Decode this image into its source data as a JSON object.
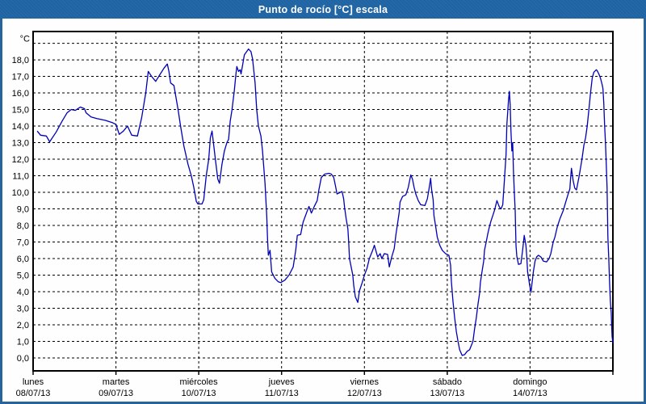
{
  "window": {
    "title": "Punto de rocío [°C] escala"
  },
  "colors": {
    "title_bar": "#2368a8",
    "window_border": "#25659b",
    "background": "#fdfefd",
    "plot_background": "#fefefe",
    "grid": "#000000",
    "series_line": "#0000b8",
    "text": "#000000",
    "title_text": "#ffffff"
  },
  "chart_data": {
    "type": "line",
    "title": "Punto de rocío [°C] escala",
    "legend": "none",
    "grid": true,
    "y_axis": {
      "unit": "°C",
      "ylim": [
        -0.78,
        19.71
      ],
      "grid_step": 1,
      "grid_max": 19,
      "tick_values": [
        0,
        1,
        2,
        3,
        4,
        5,
        6,
        7,
        8,
        9,
        10,
        11,
        12,
        13,
        14,
        15,
        16,
        17,
        18
      ],
      "tick_labels": [
        "0,0",
        "1,0",
        "2,0",
        "3,0",
        "4,0",
        "5,0",
        "6,0",
        "7,0",
        "8,0",
        "9,0",
        "10,0",
        "11,0",
        "12,0",
        "13,0",
        "14,0",
        "15,0",
        "16,0",
        "17,0",
        "18,0"
      ]
    },
    "x_axis": {
      "days": [
        {
          "name": "lunes",
          "date": "08/07/13"
        },
        {
          "name": "martes",
          "date": "09/07/13"
        },
        {
          "name": "miércoles",
          "date": "10/07/13"
        },
        {
          "name": "jueves",
          "date": "11/07/13"
        },
        {
          "name": "viernes",
          "date": "12/07/13"
        },
        {
          "name": "sábado",
          "date": "13/07/13"
        },
        {
          "name": "domingo",
          "date": "14/07/13"
        }
      ]
    },
    "series": [
      {
        "name": "Punto de rocío",
        "color": "#0000b8",
        "points": [
          [
            0.05,
            13.7
          ],
          [
            0.09,
            13.45
          ],
          [
            0.16,
            13.4
          ],
          [
            0.2,
            13.05
          ],
          [
            0.28,
            13.65
          ],
          [
            0.35,
            14.3
          ],
          [
            0.41,
            14.8
          ],
          [
            0.46,
            15.0
          ],
          [
            0.51,
            14.95
          ],
          [
            0.57,
            15.15
          ],
          [
            0.62,
            15.05
          ],
          [
            0.64,
            14.8
          ],
          [
            0.7,
            14.55
          ],
          [
            0.77,
            14.45
          ],
          [
            0.87,
            14.35
          ],
          [
            0.96,
            14.2
          ],
          [
            1.0,
            14.1
          ],
          [
            1.04,
            13.5
          ],
          [
            1.09,
            13.7
          ],
          [
            1.14,
            14.0
          ],
          [
            1.19,
            13.45
          ],
          [
            1.26,
            13.4
          ],
          [
            1.31,
            14.5
          ],
          [
            1.36,
            16.0
          ],
          [
            1.39,
            17.3
          ],
          [
            1.43,
            17.0
          ],
          [
            1.48,
            16.7
          ],
          [
            1.53,
            17.1
          ],
          [
            1.58,
            17.5
          ],
          [
            1.62,
            17.75
          ],
          [
            1.64,
            17.3
          ],
          [
            1.66,
            16.6
          ],
          [
            1.7,
            16.45
          ],
          [
            1.75,
            15.0
          ],
          [
            1.78,
            14.0
          ],
          [
            1.82,
            12.8
          ],
          [
            1.87,
            11.7
          ],
          [
            1.91,
            11.0
          ],
          [
            1.94,
            10.3
          ],
          [
            1.97,
            9.45
          ],
          [
            1.99,
            9.3
          ],
          [
            2.04,
            9.3
          ],
          [
            2.06,
            9.55
          ],
          [
            2.09,
            11.0
          ],
          [
            2.12,
            12.0
          ],
          [
            2.14,
            13.3
          ],
          [
            2.16,
            13.7
          ],
          [
            2.2,
            12.0
          ],
          [
            2.23,
            10.8
          ],
          [
            2.25,
            10.55
          ],
          [
            2.28,
            11.7
          ],
          [
            2.31,
            12.5
          ],
          [
            2.34,
            13.0
          ],
          [
            2.36,
            13.2
          ],
          [
            2.38,
            14.3
          ],
          [
            2.4,
            14.95
          ],
          [
            2.43,
            16.15
          ],
          [
            2.45,
            17.2
          ],
          [
            2.46,
            17.6
          ],
          [
            2.48,
            17.3
          ],
          [
            2.5,
            17.4
          ],
          [
            2.51,
            17.15
          ],
          [
            2.53,
            17.7
          ],
          [
            2.55,
            18.3
          ],
          [
            2.6,
            18.65
          ],
          [
            2.63,
            18.5
          ],
          [
            2.65,
            18.05
          ],
          [
            2.68,
            16.6
          ],
          [
            2.7,
            15.0
          ],
          [
            2.72,
            14.0
          ],
          [
            2.75,
            13.4
          ],
          [
            2.77,
            12.5
          ],
          [
            2.8,
            10.55
          ],
          [
            2.82,
            8.6
          ],
          [
            2.83,
            7.2
          ],
          [
            2.84,
            6.2
          ],
          [
            2.86,
            6.5
          ],
          [
            2.88,
            5.2
          ],
          [
            2.92,
            4.8
          ],
          [
            2.96,
            4.6
          ],
          [
            2.99,
            4.55
          ],
          [
            3.04,
            4.7
          ],
          [
            3.09,
            5.0
          ],
          [
            3.14,
            5.5
          ],
          [
            3.17,
            6.5
          ],
          [
            3.19,
            7.4
          ],
          [
            3.23,
            7.45
          ],
          [
            3.26,
            8.2
          ],
          [
            3.3,
            8.75
          ],
          [
            3.33,
            9.15
          ],
          [
            3.36,
            8.75
          ],
          [
            3.4,
            9.2
          ],
          [
            3.43,
            9.5
          ],
          [
            3.45,
            10.15
          ],
          [
            3.48,
            10.9
          ],
          [
            3.52,
            11.1
          ],
          [
            3.57,
            11.15
          ],
          [
            3.6,
            11.1
          ],
          [
            3.63,
            10.9
          ],
          [
            3.65,
            10.4
          ],
          [
            3.67,
            9.9
          ],
          [
            3.69,
            9.95
          ],
          [
            3.73,
            10.05
          ],
          [
            3.75,
            9.6
          ],
          [
            3.76,
            9.1
          ],
          [
            3.78,
            8.4
          ],
          [
            3.8,
            7.8
          ],
          [
            3.81,
            7.0
          ],
          [
            3.82,
            6.0
          ],
          [
            3.86,
            5.0
          ],
          [
            3.87,
            4.4
          ],
          [
            3.89,
            3.7
          ],
          [
            3.92,
            3.35
          ],
          [
            3.94,
            4.05
          ],
          [
            3.97,
            4.5
          ],
          [
            4.0,
            5.0
          ],
          [
            4.03,
            5.4
          ],
          [
            4.06,
            6.0
          ],
          [
            4.1,
            6.5
          ],
          [
            4.12,
            6.8
          ],
          [
            4.16,
            6.1
          ],
          [
            4.19,
            6.3
          ],
          [
            4.21,
            6.0
          ],
          [
            4.24,
            6.3
          ],
          [
            4.28,
            6.25
          ],
          [
            4.3,
            5.5
          ],
          [
            4.33,
            6.1
          ],
          [
            4.36,
            6.6
          ],
          [
            4.38,
            7.45
          ],
          [
            4.4,
            8.1
          ],
          [
            4.42,
            8.8
          ],
          [
            4.43,
            9.4
          ],
          [
            4.46,
            9.75
          ],
          [
            4.5,
            9.85
          ],
          [
            4.53,
            10.3
          ],
          [
            4.56,
            11.05
          ],
          [
            4.58,
            10.8
          ],
          [
            4.6,
            10.3
          ],
          [
            4.62,
            9.9
          ],
          [
            4.65,
            9.5
          ],
          [
            4.68,
            9.25
          ],
          [
            4.73,
            9.2
          ],
          [
            4.76,
            9.6
          ],
          [
            4.78,
            10.2
          ],
          [
            4.8,
            10.85
          ],
          [
            4.81,
            10.2
          ],
          [
            4.83,
            9.55
          ],
          [
            4.84,
            8.6
          ],
          [
            4.86,
            7.95
          ],
          [
            4.88,
            7.3
          ],
          [
            4.91,
            6.8
          ],
          [
            4.94,
            6.5
          ],
          [
            4.98,
            6.3
          ],
          [
            5.02,
            6.2
          ],
          [
            5.04,
            5.6
          ],
          [
            5.05,
            4.6
          ],
          [
            5.07,
            3.4
          ],
          [
            5.09,
            2.4
          ],
          [
            5.11,
            1.6
          ],
          [
            5.13,
            1.0
          ],
          [
            5.15,
            0.5
          ],
          [
            5.18,
            0.15
          ],
          [
            5.21,
            0.2
          ],
          [
            5.24,
            0.4
          ],
          [
            5.27,
            0.5
          ],
          [
            5.31,
            1.0
          ],
          [
            5.33,
            1.75
          ],
          [
            5.35,
            2.4
          ],
          [
            5.37,
            3.2
          ],
          [
            5.39,
            3.9
          ],
          [
            5.4,
            4.55
          ],
          [
            5.42,
            5.2
          ],
          [
            5.44,
            5.85
          ],
          [
            5.45,
            6.5
          ],
          [
            5.47,
            7.0
          ],
          [
            5.49,
            7.5
          ],
          [
            5.51,
            7.95
          ],
          [
            5.53,
            8.3
          ],
          [
            5.55,
            8.6
          ],
          [
            5.57,
            8.9
          ],
          [
            5.6,
            9.5
          ],
          [
            5.63,
            9.1
          ],
          [
            5.65,
            9.0
          ],
          [
            5.67,
            9.25
          ],
          [
            5.69,
            10.7
          ],
          [
            5.71,
            12.3
          ],
          [
            5.72,
            14.1
          ],
          [
            5.74,
            15.6
          ],
          [
            5.75,
            16.1
          ],
          [
            5.76,
            15.3
          ],
          [
            5.77,
            13.65
          ],
          [
            5.78,
            12.5
          ],
          [
            5.79,
            13.0
          ],
          [
            5.8,
            11.2
          ],
          [
            5.81,
            10.05
          ],
          [
            5.82,
            8.9
          ],
          [
            5.83,
            6.8
          ],
          [
            5.84,
            6.15
          ],
          [
            5.86,
            5.65
          ],
          [
            5.89,
            5.7
          ],
          [
            5.91,
            6.5
          ],
          [
            5.93,
            7.4
          ],
          [
            5.95,
            6.8
          ],
          [
            5.96,
            6.15
          ],
          [
            5.97,
            5.2
          ],
          [
            5.99,
            4.55
          ],
          [
            6.01,
            3.95
          ],
          [
            6.04,
            5.2
          ],
          [
            6.06,
            5.85
          ],
          [
            6.08,
            6.1
          ],
          [
            6.1,
            6.2
          ],
          [
            6.13,
            6.1
          ],
          [
            6.16,
            5.85
          ],
          [
            6.2,
            5.8
          ],
          [
            6.23,
            6.0
          ],
          [
            6.25,
            6.3
          ],
          [
            6.28,
            7.0
          ],
          [
            6.3,
            7.3
          ],
          [
            6.33,
            7.95
          ],
          [
            6.36,
            8.4
          ],
          [
            6.4,
            8.9
          ],
          [
            6.43,
            9.4
          ],
          [
            6.46,
            9.9
          ],
          [
            6.48,
            10.2
          ],
          [
            6.49,
            10.9
          ],
          [
            6.5,
            11.45
          ],
          [
            6.52,
            10.7
          ],
          [
            6.54,
            10.25
          ],
          [
            6.56,
            10.15
          ],
          [
            6.59,
            10.9
          ],
          [
            6.61,
            11.5
          ],
          [
            6.63,
            12.1
          ],
          [
            6.65,
            12.85
          ],
          [
            6.67,
            13.3
          ],
          [
            6.69,
            14.0
          ],
          [
            6.71,
            15.0
          ],
          [
            6.73,
            16.0
          ],
          [
            6.75,
            16.9
          ],
          [
            6.77,
            17.25
          ],
          [
            6.8,
            17.4
          ],
          [
            6.81,
            17.35
          ],
          [
            6.83,
            17.15
          ],
          [
            6.85,
            16.9
          ],
          [
            6.87,
            16.5
          ],
          [
            6.88,
            16.25
          ],
          [
            6.89,
            15.4
          ],
          [
            6.9,
            14.1
          ],
          [
            6.91,
            13.0
          ],
          [
            6.92,
            11.7
          ],
          [
            6.93,
            10.25
          ],
          [
            6.94,
            7.3
          ],
          [
            6.95,
            6.0
          ],
          [
            6.96,
            4.55
          ],
          [
            6.97,
            3.4
          ],
          [
            6.98,
            2.75
          ],
          [
            6.985,
            1.95
          ],
          [
            6.99,
            1.3
          ],
          [
            7.0,
            0.9
          ]
        ]
      }
    ]
  }
}
